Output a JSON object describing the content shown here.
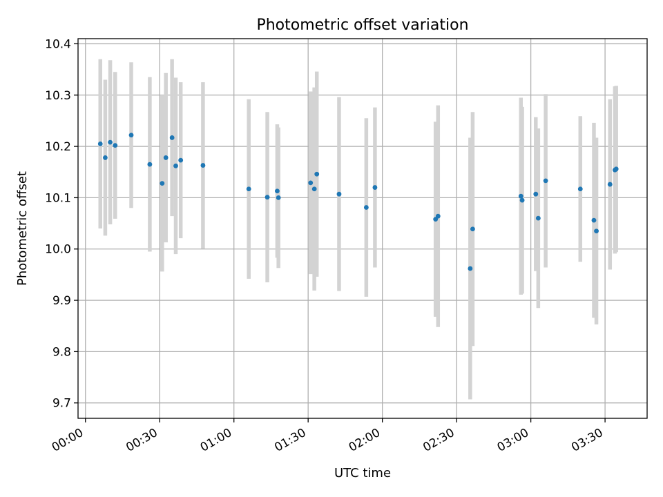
{
  "chart_data": {
    "type": "scatter",
    "title": "Photometric offset variation",
    "xlabel": "UTC time",
    "ylabel": "Photometric offset",
    "x_unit": "minutes",
    "xlim": [
      -3,
      227
    ],
    "ylim": [
      9.67,
      10.41
    ],
    "xticks": [
      {
        "value": 0,
        "label": "00:00"
      },
      {
        "value": 30,
        "label": "00:30"
      },
      {
        "value": 60,
        "label": "01:00"
      },
      {
        "value": 90,
        "label": "01:30"
      },
      {
        "value": 120,
        "label": "02:00"
      },
      {
        "value": 150,
        "label": "02:30"
      },
      {
        "value": 180,
        "label": "03:00"
      },
      {
        "value": 210,
        "label": "03:30"
      }
    ],
    "yticks": [
      {
        "value": 9.7,
        "label": "9.7"
      },
      {
        "value": 9.8,
        "label": "9.8"
      },
      {
        "value": 9.9,
        "label": "9.9"
      },
      {
        "value": 10.0,
        "label": "10.0"
      },
      {
        "value": 10.1,
        "label": "10.1"
      },
      {
        "value": 10.2,
        "label": "10.2"
      },
      {
        "value": 10.3,
        "label": "10.3"
      },
      {
        "value": 10.4,
        "label": "10.4"
      }
    ],
    "grid": true,
    "marker_color": "#1f77b4",
    "errorbar_color": "#d3d3d3",
    "points": [
      {
        "x": 6,
        "y": 10.205,
        "yerr": 0.165
      },
      {
        "x": 8,
        "y": 10.178,
        "yerr": 0.152
      },
      {
        "x": 10,
        "y": 10.208,
        "yerr": 0.16
      },
      {
        "x": 12,
        "y": 10.202,
        "yerr": 0.143
      },
      {
        "x": 18.5,
        "y": 10.222,
        "yerr": 0.142
      },
      {
        "x": 26,
        "y": 10.165,
        "yerr": 0.17
      },
      {
        "x": 31,
        "y": 10.128,
        "yerr": 0.172
      },
      {
        "x": 32.5,
        "y": 10.178,
        "yerr": 0.165
      },
      {
        "x": 35,
        "y": 10.217,
        "yerr": 0.153
      },
      {
        "x": 36.5,
        "y": 10.162,
        "yerr": 0.172
      },
      {
        "x": 38.5,
        "y": 10.173,
        "yerr": 0.152
      },
      {
        "x": 47.5,
        "y": 10.163,
        "yerr": 0.162
      },
      {
        "x": 66,
        "y": 10.117,
        "yerr": 0.175
      },
      {
        "x": 73.5,
        "y": 10.101,
        "yerr": 0.166
      },
      {
        "x": 77.5,
        "y": 10.113,
        "yerr": 0.13
      },
      {
        "x": 78,
        "y": 10.1,
        "yerr": 0.137
      },
      {
        "x": 91,
        "y": 10.129,
        "yerr": 0.178
      },
      {
        "x": 92.5,
        "y": 10.117,
        "yerr": 0.198
      },
      {
        "x": 93.5,
        "y": 10.146,
        "yerr": 0.2
      },
      {
        "x": 102.5,
        "y": 10.107,
        "yerr": 0.189
      },
      {
        "x": 113.5,
        "y": 10.081,
        "yerr": 0.174
      },
      {
        "x": 117,
        "y": 10.12,
        "yerr": 0.156
      },
      {
        "x": 141.5,
        "y": 10.058,
        "yerr": 0.19
      },
      {
        "x": 142.5,
        "y": 10.064,
        "yerr": 0.216
      },
      {
        "x": 155.5,
        "y": 9.962,
        "yerr": 0.255
      },
      {
        "x": 156.5,
        "y": 10.039,
        "yerr": 0.228
      },
      {
        "x": 176,
        "y": 10.103,
        "yerr": 0.192
      },
      {
        "x": 176.5,
        "y": 10.095,
        "yerr": 0.182
      },
      {
        "x": 182,
        "y": 10.107,
        "yerr": 0.15
      },
      {
        "x": 183,
        "y": 10.06,
        "yerr": 0.175
      },
      {
        "x": 186,
        "y": 10.133,
        "yerr": 0.169
      },
      {
        "x": 200,
        "y": 10.117,
        "yerr": 0.142
      },
      {
        "x": 205.5,
        "y": 10.056,
        "yerr": 0.19
      },
      {
        "x": 206.5,
        "y": 10.035,
        "yerr": 0.182
      },
      {
        "x": 212,
        "y": 10.126,
        "yerr": 0.166
      },
      {
        "x": 214,
        "y": 10.154,
        "yerr": 0.163
      },
      {
        "x": 214.5,
        "y": 10.156,
        "yerr": 0.162
      }
    ]
  }
}
